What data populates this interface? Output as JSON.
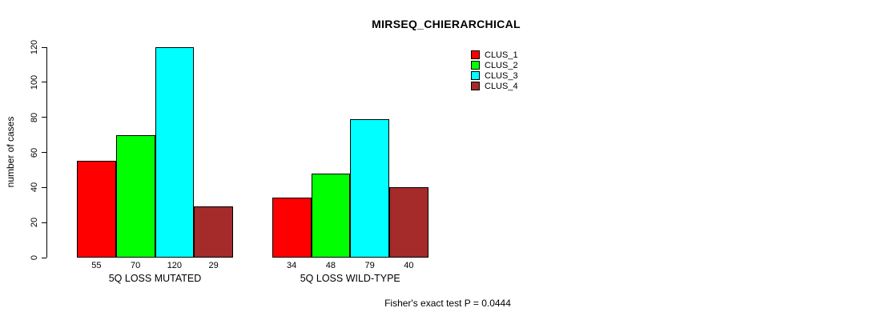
{
  "title": "MIRSEQ_CHIERARCHICAL",
  "footer": "Fisher's exact test P = 0.0444",
  "colors": {
    "clus_1": "#FF0000",
    "clus_2": "#00FF00",
    "clus_3": "#00FFFF",
    "clus_4": "#A52A2A",
    "axis": "#000000",
    "background": "#FFFFFF"
  },
  "chart_data": {
    "type": "bar",
    "title": "MIRSEQ_CHIERARCHICAL",
    "xlabel": "",
    "ylabel": "number of cases",
    "categories": [
      "5Q LOSS MUTATED",
      "5Q LOSS WILD-TYPE"
    ],
    "series": [
      {
        "name": "CLUS_1",
        "color": "#FF0000",
        "values": [
          55,
          34
        ]
      },
      {
        "name": "CLUS_2",
        "color": "#00FF00",
        "values": [
          70,
          48
        ]
      },
      {
        "name": "CLUS_3",
        "color": "#00FFFF",
        "values": [
          120,
          79
        ]
      },
      {
        "name": "CLUS_4",
        "color": "#A52A2A",
        "values": [
          29,
          40
        ]
      }
    ],
    "bar_value_labels": {
      "5Q LOSS MUTATED": [
        55,
        70,
        120,
        29
      ],
      "5Q LOSS WILD-TYPE": [
        34,
        48,
        79,
        40
      ]
    },
    "yticks": [
      0,
      20,
      40,
      60,
      80,
      100,
      120
    ],
    "ylim": [
      0,
      120
    ],
    "grid": false,
    "legend_position": "top-right",
    "legend_entries": [
      "CLUS_1",
      "CLUS_2",
      "CLUS_3",
      "CLUS_4"
    ],
    "annotation": "Fisher's exact test P = 0.0444"
  }
}
